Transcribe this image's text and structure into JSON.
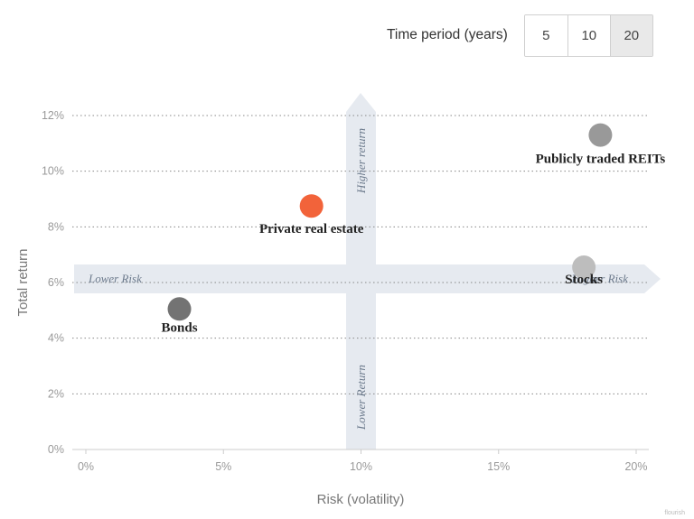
{
  "controls": {
    "label": "Time period (years)",
    "options": [
      "5",
      "10",
      "20"
    ],
    "selected": "20"
  },
  "watermark": "flourish",
  "colors": {
    "arrow": "#e6eaf0",
    "grid": "#888888",
    "axis": "#cccccc"
  },
  "chart_data": {
    "type": "scatter",
    "xlabel": "Risk (volatility)",
    "ylabel": "Total return",
    "xlim": [
      0,
      20
    ],
    "ylim": [
      0,
      12
    ],
    "x_ticks": [
      "0%",
      "5%",
      "10%",
      "15%",
      "20%"
    ],
    "y_ticks": [
      "0%",
      "2%",
      "4%",
      "6%",
      "8%",
      "10%",
      "12%"
    ],
    "grid": "horizontal dotted",
    "points": [
      {
        "label": "Bonds",
        "x": 3.4,
        "y": 5.05,
        "color": "#737373"
      },
      {
        "label": "Private real estate",
        "x": 8.2,
        "y": 8.75,
        "color": "#f2633a"
      },
      {
        "label": "Stocks",
        "x": 18.1,
        "y": 6.55,
        "color": "#bdbdbd"
      },
      {
        "label": "Publicly traded REITs",
        "x": 18.7,
        "y": 11.3,
        "color": "#999999"
      }
    ],
    "annotations": {
      "lower_risk": "Lower Risk",
      "higher_risk": "Higher Risk",
      "higher_return": "Higher return",
      "lower_return": "Lower Return"
    }
  }
}
